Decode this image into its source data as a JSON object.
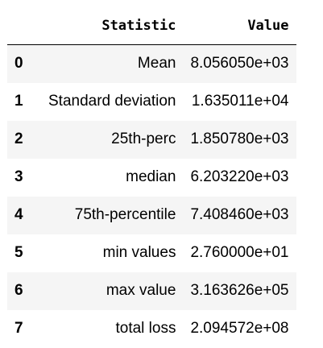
{
  "table": {
    "columns": [
      "",
      "Statistic",
      "Value"
    ],
    "rows": [
      {
        "index": "0",
        "statistic": "Mean",
        "value": "8.056050e+03"
      },
      {
        "index": "1",
        "statistic": "Standard deviation",
        "value": "1.635011e+04"
      },
      {
        "index": "2",
        "statistic": "25th-perc",
        "value": "1.850780e+03"
      },
      {
        "index": "3",
        "statistic": "median",
        "value": "6.203220e+03"
      },
      {
        "index": "4",
        "statistic": "75th-percentile",
        "value": "7.408460e+03"
      },
      {
        "index": "5",
        "statistic": "min values",
        "value": "2.760000e+01"
      },
      {
        "index": "6",
        "statistic": "max value",
        "value": "3.163626e+05"
      },
      {
        "index": "7",
        "statistic": "total loss",
        "value": "2.094572e+08"
      }
    ]
  }
}
